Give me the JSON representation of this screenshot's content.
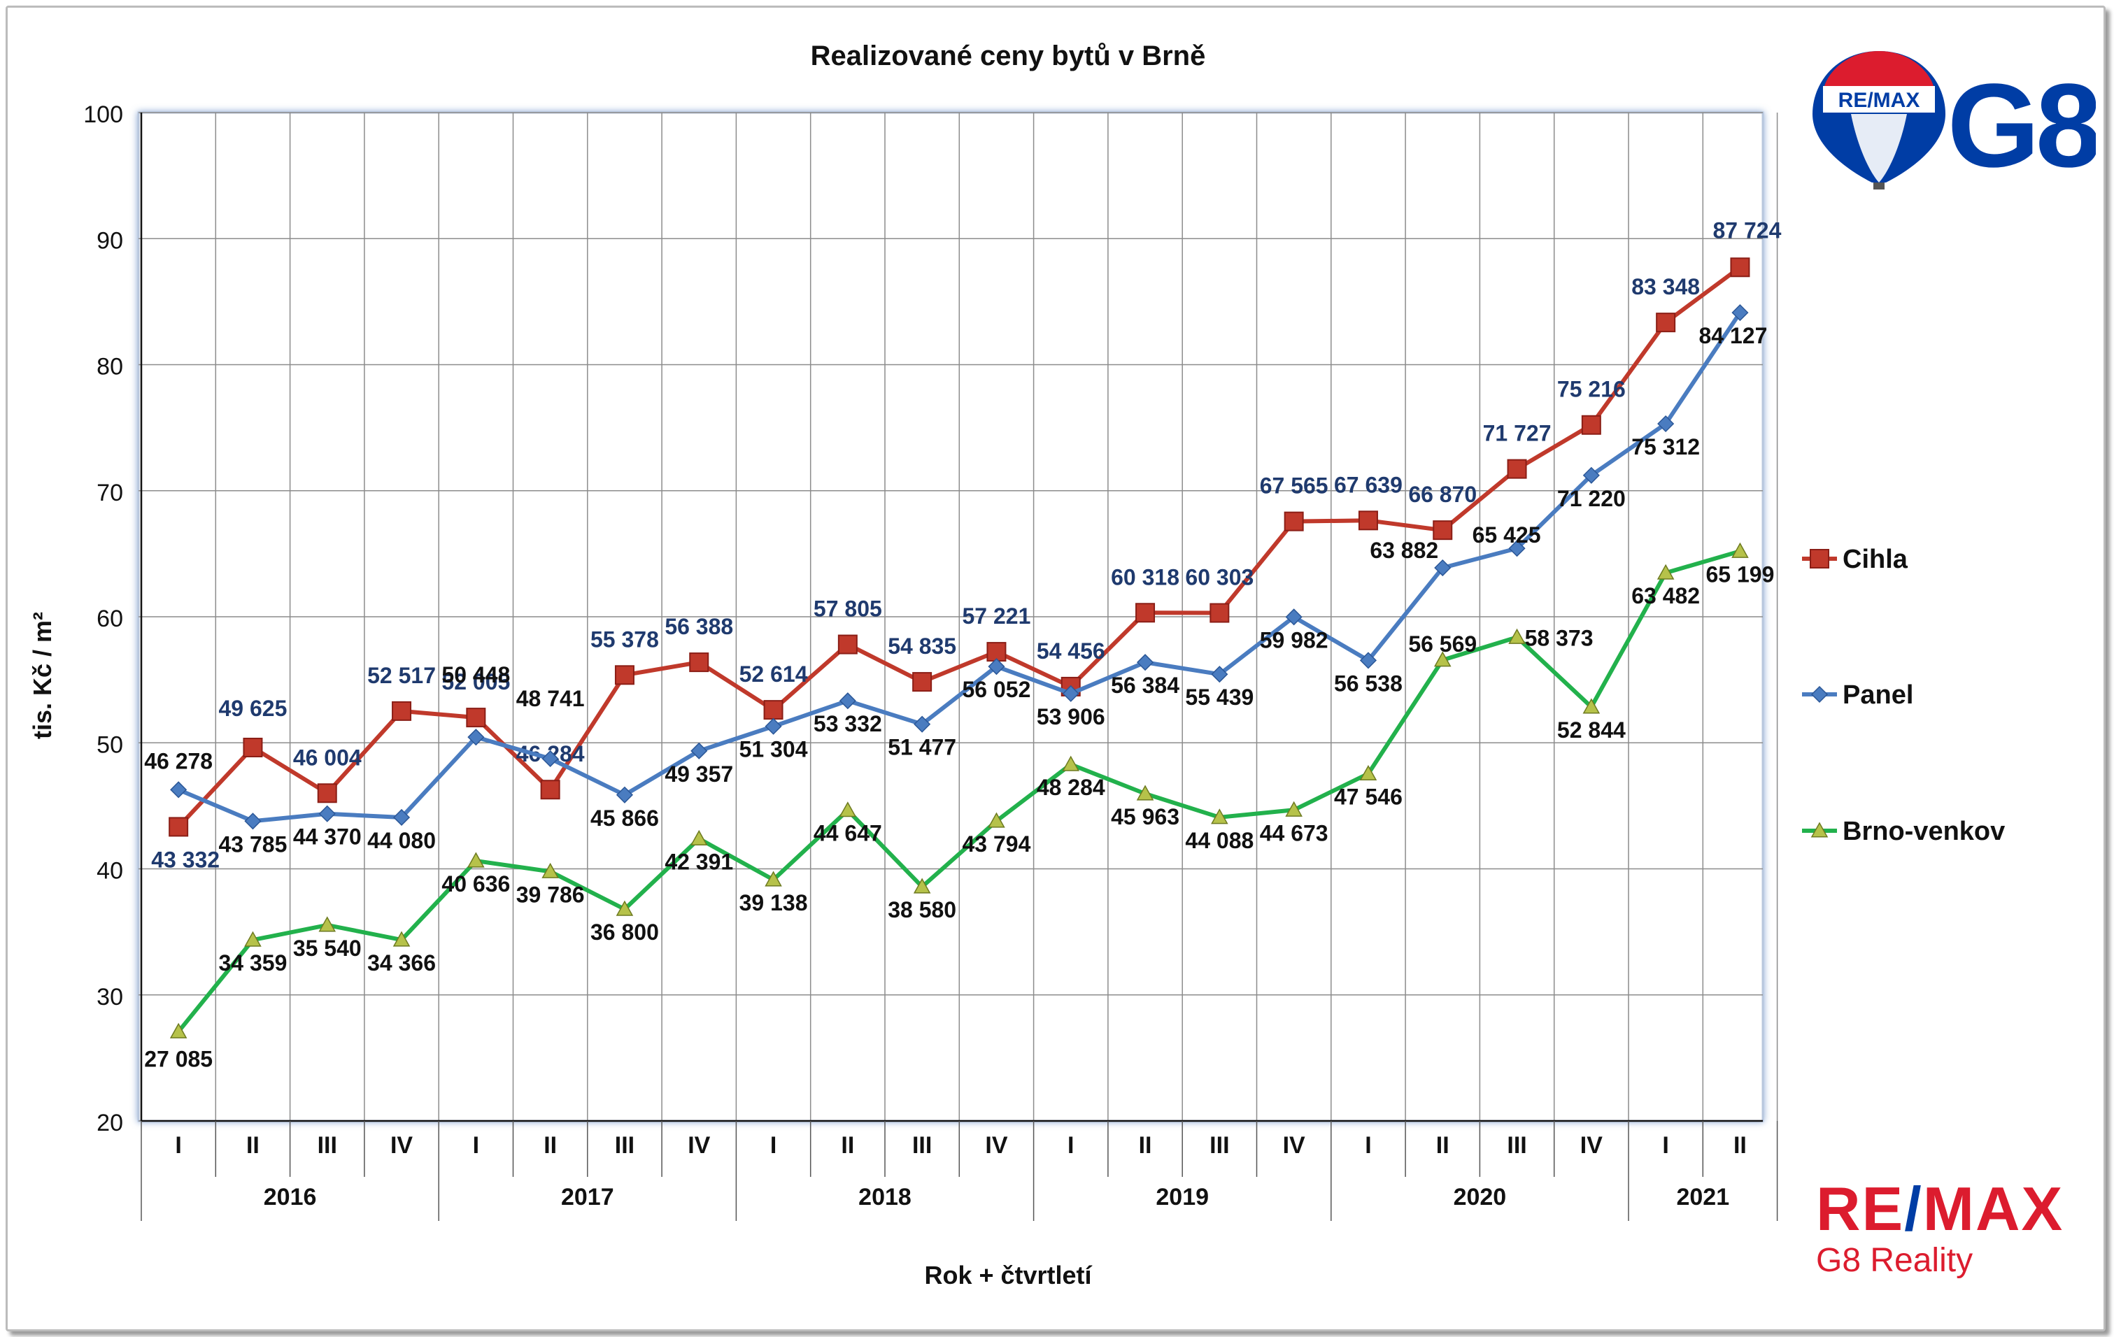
{
  "chart_data": {
    "type": "line",
    "title": "Realizované ceny bytů v Brně",
    "xlabel": "Rok + čtvrtletí",
    "ylabel": "tis. Kč / m²",
    "ylim": [
      20,
      100
    ],
    "yticks": [
      20,
      30,
      40,
      50,
      60,
      70,
      80,
      90,
      100
    ],
    "grid": true,
    "legend_position": "right",
    "quarters": [
      "I",
      "II",
      "III",
      "IV",
      "I",
      "II",
      "III",
      "IV",
      "I",
      "II",
      "III",
      "IV",
      "I",
      "II",
      "III",
      "IV",
      "I",
      "II",
      "III",
      "IV",
      "I",
      "II"
    ],
    "years": [
      {
        "label": "2016",
        "quarters": 4
      },
      {
        "label": "2017",
        "quarters": 4
      },
      {
        "label": "2018",
        "quarters": 4
      },
      {
        "label": "2019",
        "quarters": 4
      },
      {
        "label": "2020",
        "quarters": 4
      },
      {
        "label": "2021",
        "quarters": 2
      }
    ],
    "series": [
      {
        "name": "Cihla",
        "color": "#c0392b",
        "marker": "square",
        "values": [
          43.332,
          49.625,
          46.004,
          52.517,
          52.005,
          46.284,
          55.378,
          56.388,
          52.614,
          57.805,
          54.835,
          57.221,
          54.456,
          60.318,
          60.303,
          67.565,
          67.639,
          66.87,
          71.727,
          75.216,
          83.348,
          87.724
        ],
        "labels": [
          "43 332",
          "49 625",
          "46 004",
          "52 517",
          "52 005",
          "46 284",
          "55 378",
          "56 388",
          "52 614",
          "57 805",
          "54 835",
          "57 221",
          "54 456",
          "60 318",
          "60 303",
          "67 565",
          "67 639",
          "66 870",
          "71 727",
          "75 216",
          "83 348",
          "87 724"
        ],
        "label_color": "#1f3a6e"
      },
      {
        "name": "Panel",
        "color": "#4a7cc0",
        "marker": "diamond",
        "values": [
          46.278,
          43.785,
          44.37,
          44.08,
          50.448,
          48.741,
          45.866,
          49.357,
          51.304,
          53.332,
          51.477,
          56.052,
          53.906,
          56.384,
          55.439,
          59.982,
          56.538,
          63.882,
          65.425,
          71.22,
          75.312,
          84.127
        ],
        "labels": [
          "46 278",
          "43 785",
          "44 370",
          "44 080",
          "50 448",
          "48 741",
          "45 866",
          "49 357",
          "51 304",
          "53 332",
          "51 477",
          "56 052",
          "53 906",
          "56 384",
          "55 439",
          "59 982",
          "56 538",
          "63 882",
          "65 425",
          "71 220",
          "75 312",
          "84 127"
        ],
        "label_color": "#111111"
      },
      {
        "name": "Brno-venkov",
        "color": "#22b14c",
        "marker": "triangle",
        "values": [
          27.085,
          34.359,
          35.54,
          34.366,
          40.636,
          39.786,
          36.8,
          42.391,
          39.138,
          44.647,
          38.58,
          43.794,
          48.284,
          45.963,
          44.088,
          44.673,
          47.546,
          56.569,
          58.373,
          52.844,
          63.482,
          65.199
        ],
        "labels": [
          "27 085",
          "34 359",
          "35 540",
          "34 366",
          "40 636",
          "39 786",
          "36 800",
          "42 391",
          "39 138",
          "44 647",
          "38 580",
          "43 794",
          "48 284",
          "45 963",
          "44 088",
          "44 673",
          "47 546",
          "56 569",
          "58 373",
          "52 844",
          "63 482",
          "65 199"
        ],
        "label_color": "#111111"
      }
    ]
  },
  "logos": {
    "top_g8": "G8",
    "top_balloon": "RE/MAX",
    "bottom_word_left": "RE",
    "bottom_word_slash": "/",
    "bottom_word_right": "MAX",
    "bottom_sub": "G8 Reality"
  }
}
